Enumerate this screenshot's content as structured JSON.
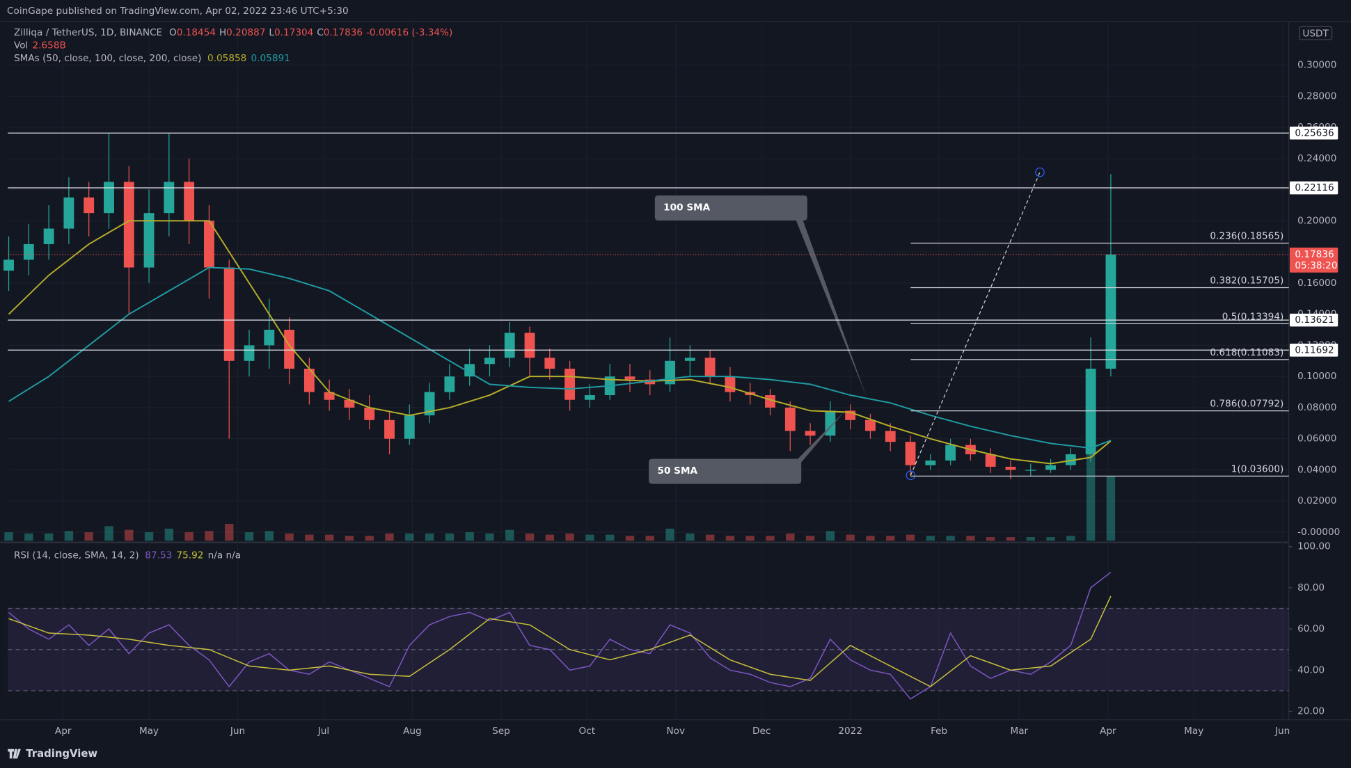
{
  "header": {
    "published": "CoinGape published on TradingView.com, Apr 02, 2022 23:46 UTC+5:30"
  },
  "footer": {
    "brand": "TradingView"
  },
  "chart_data": [
    {
      "type": "candlestick",
      "title": "Zilliqa / TetherUS, 1D, BINANCE",
      "ohlc_legend": [
        {
          "label": "O",
          "value": "0.18454"
        },
        {
          "label": "H",
          "value": "0.20887"
        },
        {
          "label": "L",
          "value": "0.17304"
        },
        {
          "label": "C",
          "value": "0.17836"
        }
      ],
      "change": "-0.00616 (-3.34%)",
      "volume_legend": {
        "label": "Vol",
        "value": "2.658B"
      },
      "sma_title": "SMAs (50, close, 100, close, 200, close)",
      "currency": "USDT",
      "up_color": "#26a69a",
      "down_color": "#ef5350",
      "xlim": [
        -19.3,
        428.2
      ],
      "ylim": [
        -0.0055,
        0.328
      ],
      "yticks": [
        {
          "value": 0,
          "label": "-0.00000"
        },
        {
          "value": 0.02,
          "label": "0.02000"
        },
        {
          "value": 0.04,
          "label": "0.04000"
        },
        {
          "value": 0.06,
          "label": "0.06000"
        },
        {
          "value": 0.08,
          "label": "0.08000"
        },
        {
          "value": 0.1,
          "label": "0.10000"
        },
        {
          "value": 0.12,
          "label": "0.12000"
        },
        {
          "value": 0.14,
          "label": "0.14000"
        },
        {
          "value": 0.16,
          "label": "0.16000"
        },
        {
          "value": 0.18,
          "label": "0.18000"
        },
        {
          "value": 0.2,
          "label": "0.20000"
        },
        {
          "value": 0.22,
          "label": "0.22000"
        },
        {
          "value": 0.24,
          "label": "0.24000"
        },
        {
          "value": 0.26,
          "label": "0.26000"
        },
        {
          "value": 0.28,
          "label": "0.28000"
        },
        {
          "value": 0.3,
          "label": "0.30000"
        }
      ],
      "x": [
        -19,
        -12,
        -5,
        2,
        9,
        16,
        23,
        30,
        37,
        44,
        51,
        58,
        65,
        72,
        79,
        86,
        93,
        100,
        107,
        114,
        121,
        128,
        135,
        142,
        149,
        156,
        163,
        170,
        177,
        184,
        191,
        198,
        205,
        212,
        219,
        226,
        233,
        240,
        247,
        254,
        261,
        268,
        275,
        282,
        289,
        296,
        303,
        310,
        317,
        324,
        331,
        338,
        345,
        352,
        359,
        366
      ],
      "open": [
        0.168,
        0.175,
        0.185,
        0.195,
        0.215,
        0.205,
        0.225,
        0.17,
        0.205,
        0.225,
        0.2,
        0.17,
        0.11,
        0.12,
        0.13,
        0.105,
        0.09,
        0.085,
        0.08,
        0.072,
        0.06,
        0.075,
        0.09,
        0.1,
        0.108,
        0.112,
        0.128,
        0.112,
        0.105,
        0.085,
        0.088,
        0.1,
        0.098,
        0.095,
        0.11,
        0.112,
        0.1,
        0.09,
        0.088,
        0.08,
        0.065,
        0.062,
        0.078,
        0.072,
        0.065,
        0.058,
        0.043,
        0.046,
        0.056,
        0.05,
        0.042,
        0.04,
        0.04,
        0.043,
        0.05,
        0.105
      ],
      "high": [
        0.19,
        0.198,
        0.21,
        0.228,
        0.225,
        0.256,
        0.235,
        0.22,
        0.256,
        0.24,
        0.21,
        0.175,
        0.13,
        0.15,
        0.138,
        0.112,
        0.098,
        0.092,
        0.088,
        0.078,
        0.082,
        0.096,
        0.108,
        0.118,
        0.12,
        0.135,
        0.132,
        0.118,
        0.11,
        0.095,
        0.108,
        0.108,
        0.104,
        0.125,
        0.12,
        0.117,
        0.106,
        0.096,
        0.092,
        0.084,
        0.07,
        0.084,
        0.082,
        0.076,
        0.07,
        0.062,
        0.05,
        0.06,
        0.06,
        0.054,
        0.046,
        0.044,
        0.047,
        0.054,
        0.125,
        0.23
      ],
      "low": [
        0.155,
        0.165,
        0.175,
        0.185,
        0.19,
        0.195,
        0.14,
        0.16,
        0.19,
        0.185,
        0.15,
        0.06,
        0.1,
        0.105,
        0.095,
        0.082,
        0.078,
        0.072,
        0.066,
        0.05,
        0.056,
        0.07,
        0.085,
        0.094,
        0.1,
        0.106,
        0.1,
        0.098,
        0.078,
        0.08,
        0.085,
        0.09,
        0.088,
        0.09,
        0.1,
        0.095,
        0.084,
        0.082,
        0.075,
        0.052,
        0.056,
        0.058,
        0.066,
        0.06,
        0.052,
        0.036,
        0.04,
        0.043,
        0.046,
        0.038,
        0.034,
        0.036,
        0.038,
        0.04,
        0.045,
        0.1
      ],
      "close": [
        0.175,
        0.185,
        0.195,
        0.215,
        0.205,
        0.225,
        0.17,
        0.205,
        0.225,
        0.2,
        0.17,
        0.11,
        0.12,
        0.13,
        0.105,
        0.09,
        0.085,
        0.08,
        0.072,
        0.06,
        0.075,
        0.09,
        0.1,
        0.108,
        0.112,
        0.128,
        0.112,
        0.105,
        0.085,
        0.088,
        0.1,
        0.098,
        0.095,
        0.11,
        0.112,
        0.1,
        0.09,
        0.088,
        0.08,
        0.065,
        0.062,
        0.078,
        0.072,
        0.065,
        0.058,
        0.043,
        0.046,
        0.056,
        0.05,
        0.042,
        0.04,
        0.04,
        0.043,
        0.05,
        0.105,
        0.17836
      ],
      "volume": [
        0.35,
        0.3,
        0.3,
        0.4,
        0.35,
        0.6,
        0.45,
        0.35,
        0.5,
        0.35,
        0.4,
        0.7,
        0.35,
        0.4,
        0.3,
        0.25,
        0.25,
        0.2,
        0.2,
        0.3,
        0.3,
        0.3,
        0.3,
        0.35,
        0.3,
        0.45,
        0.3,
        0.25,
        0.3,
        0.25,
        0.25,
        0.2,
        0.2,
        0.5,
        0.3,
        0.25,
        0.2,
        0.2,
        0.2,
        0.3,
        0.2,
        0.4,
        0.25,
        0.2,
        0.2,
        0.25,
        0.2,
        0.2,
        0.2,
        0.15,
        0.15,
        0.15,
        0.15,
        0.2,
        5.0,
        2.658
      ],
      "sma_x": [
        -19,
        -5,
        9,
        23,
        37,
        51,
        65,
        79,
        93,
        107,
        121,
        135,
        149,
        163,
        177,
        191,
        205,
        219,
        233,
        247,
        261,
        275,
        289,
        303,
        317,
        331,
        345,
        359,
        366
      ],
      "sma_series": [
        {
          "color": "#b5ad2a",
          "value_label": "0.05858",
          "values": [
            0.14,
            0.165,
            0.185,
            0.2,
            0.2,
            0.2,
            0.16,
            0.12,
            0.09,
            0.08,
            0.075,
            0.08,
            0.088,
            0.1,
            0.1,
            0.098,
            0.097,
            0.098,
            0.093,
            0.085,
            0.078,
            0.077,
            0.068,
            0.06,
            0.053,
            0.047,
            0.044,
            0.048,
            0.05858
          ]
        },
        {
          "color": "#1f9ba3",
          "value_label": "0.05891",
          "values": [
            0.084,
            0.1,
            0.12,
            0.14,
            0.155,
            0.17,
            0.169,
            0.163,
            0.155,
            0.14,
            0.125,
            0.11,
            0.095,
            0.093,
            0.092,
            0.094,
            0.097,
            0.1,
            0.1,
            0.098,
            0.095,
            0.088,
            0.083,
            0.075,
            0.068,
            0.062,
            0.057,
            0.054,
            0.05891
          ]
        }
      ],
      "levels": [
        {
          "value": 0.25636,
          "label": "0.25636"
        },
        {
          "value": 0.22116,
          "label": "0.22116"
        },
        {
          "value": 0.13621,
          "label": "0.13621"
        },
        {
          "value": 0.11692,
          "label": "0.11692"
        }
      ],
      "fib": [
        {
          "value": 0.18565,
          "label": "0.236(0.18565)"
        },
        {
          "value": 0.15705,
          "label": "0.382(0.15705)"
        },
        {
          "value": 0.13394,
          "label": "0.5(0.13394)"
        },
        {
          "value": 0.11083,
          "label": "0.618(0.11083)"
        },
        {
          "value": 0.07792,
          "label": "0.786(0.07792)"
        },
        {
          "value": 0.036,
          "label": "1(0.03600)"
        }
      ],
      "annotations": [
        "100 SMA",
        "50 SMA"
      ],
      "last_price": {
        "value": 0.17836,
        "label": "0.17836"
      },
      "countdown": "05:38:20"
    },
    {
      "type": "line",
      "title": "RSI (14, close, SMA, 14, 2)",
      "na_label": "n/a n/a",
      "xlim": [
        -19.3,
        428.2
      ],
      "ylim": [
        15.9,
        102
      ],
      "yticks": [
        {
          "value": 20,
          "label": "20.00"
        },
        {
          "value": 40,
          "label": "40.00"
        },
        {
          "value": 60,
          "label": "60.00"
        },
        {
          "value": 80,
          "label": "80.00"
        },
        {
          "value": 100,
          "label": "100.00"
        }
      ],
      "xticks": [
        {
          "value": 0,
          "label": "Apr"
        },
        {
          "value": 30,
          "label": "May"
        },
        {
          "value": 61,
          "label": "Jun"
        },
        {
          "value": 91,
          "label": "Jul"
        },
        {
          "value": 122,
          "label": "Aug"
        },
        {
          "value": 153,
          "label": "Sep"
        },
        {
          "value": 183,
          "label": "Oct"
        },
        {
          "value": 214,
          "label": "Nov"
        },
        {
          "value": 244,
          "label": "Dec"
        },
        {
          "value": 275,
          "label": "2022"
        },
        {
          "value": 306,
          "label": "Feb"
        },
        {
          "value": 334,
          "label": "Mar"
        },
        {
          "value": 365,
          "label": "Apr"
        },
        {
          "value": 395,
          "label": "May"
        },
        {
          "value": 426,
          "label": "Jun"
        }
      ],
      "bands": [
        70,
        50,
        30
      ],
      "x": [
        -19,
        -12,
        -5,
        2,
        9,
        16,
        23,
        30,
        37,
        44,
        51,
        58,
        65,
        72,
        79,
        86,
        93,
        100,
        107,
        114,
        121,
        128,
        135,
        142,
        149,
        156,
        163,
        170,
        177,
        184,
        191,
        198,
        205,
        212,
        219,
        226,
        233,
        240,
        247,
        254,
        261,
        268,
        275,
        282,
        289,
        296,
        303,
        310,
        317,
        324,
        331,
        338,
        345,
        352,
        359,
        366
      ],
      "rsi": {
        "color": "#7e57c2",
        "value_label": "87.53",
        "values": [
          68,
          60,
          55,
          62,
          52,
          60,
          48,
          58,
          62,
          52,
          45,
          32,
          44,
          48,
          40,
          38,
          44,
          40,
          36,
          32,
          52,
          62,
          66,
          68,
          64,
          68,
          52,
          50,
          40,
          42,
          55,
          50,
          48,
          62,
          58,
          46,
          40,
          38,
          34,
          32,
          36,
          55,
          45,
          40,
          38,
          26,
          32,
          58,
          42,
          36,
          40,
          38,
          44,
          52,
          80,
          87.53
        ]
      },
      "ma": {
        "color": "#c9c23a",
        "value_label": "75.92",
        "x": [
          -19,
          -5,
          9,
          23,
          37,
          51,
          65,
          79,
          93,
          107,
          121,
          135,
          149,
          163,
          177,
          191,
          205,
          219,
          233,
          247,
          261,
          275,
          289,
          303,
          317,
          331,
          345,
          359,
          366
        ],
        "values": [
          65,
          58,
          57,
          55,
          52,
          50,
          42,
          40,
          42,
          38,
          37,
          50,
          65,
          62,
          50,
          45,
          50,
          57,
          45,
          38,
          35,
          52,
          42,
          32,
          47,
          40,
          42,
          55,
          75.92
        ]
      }
    }
  ]
}
